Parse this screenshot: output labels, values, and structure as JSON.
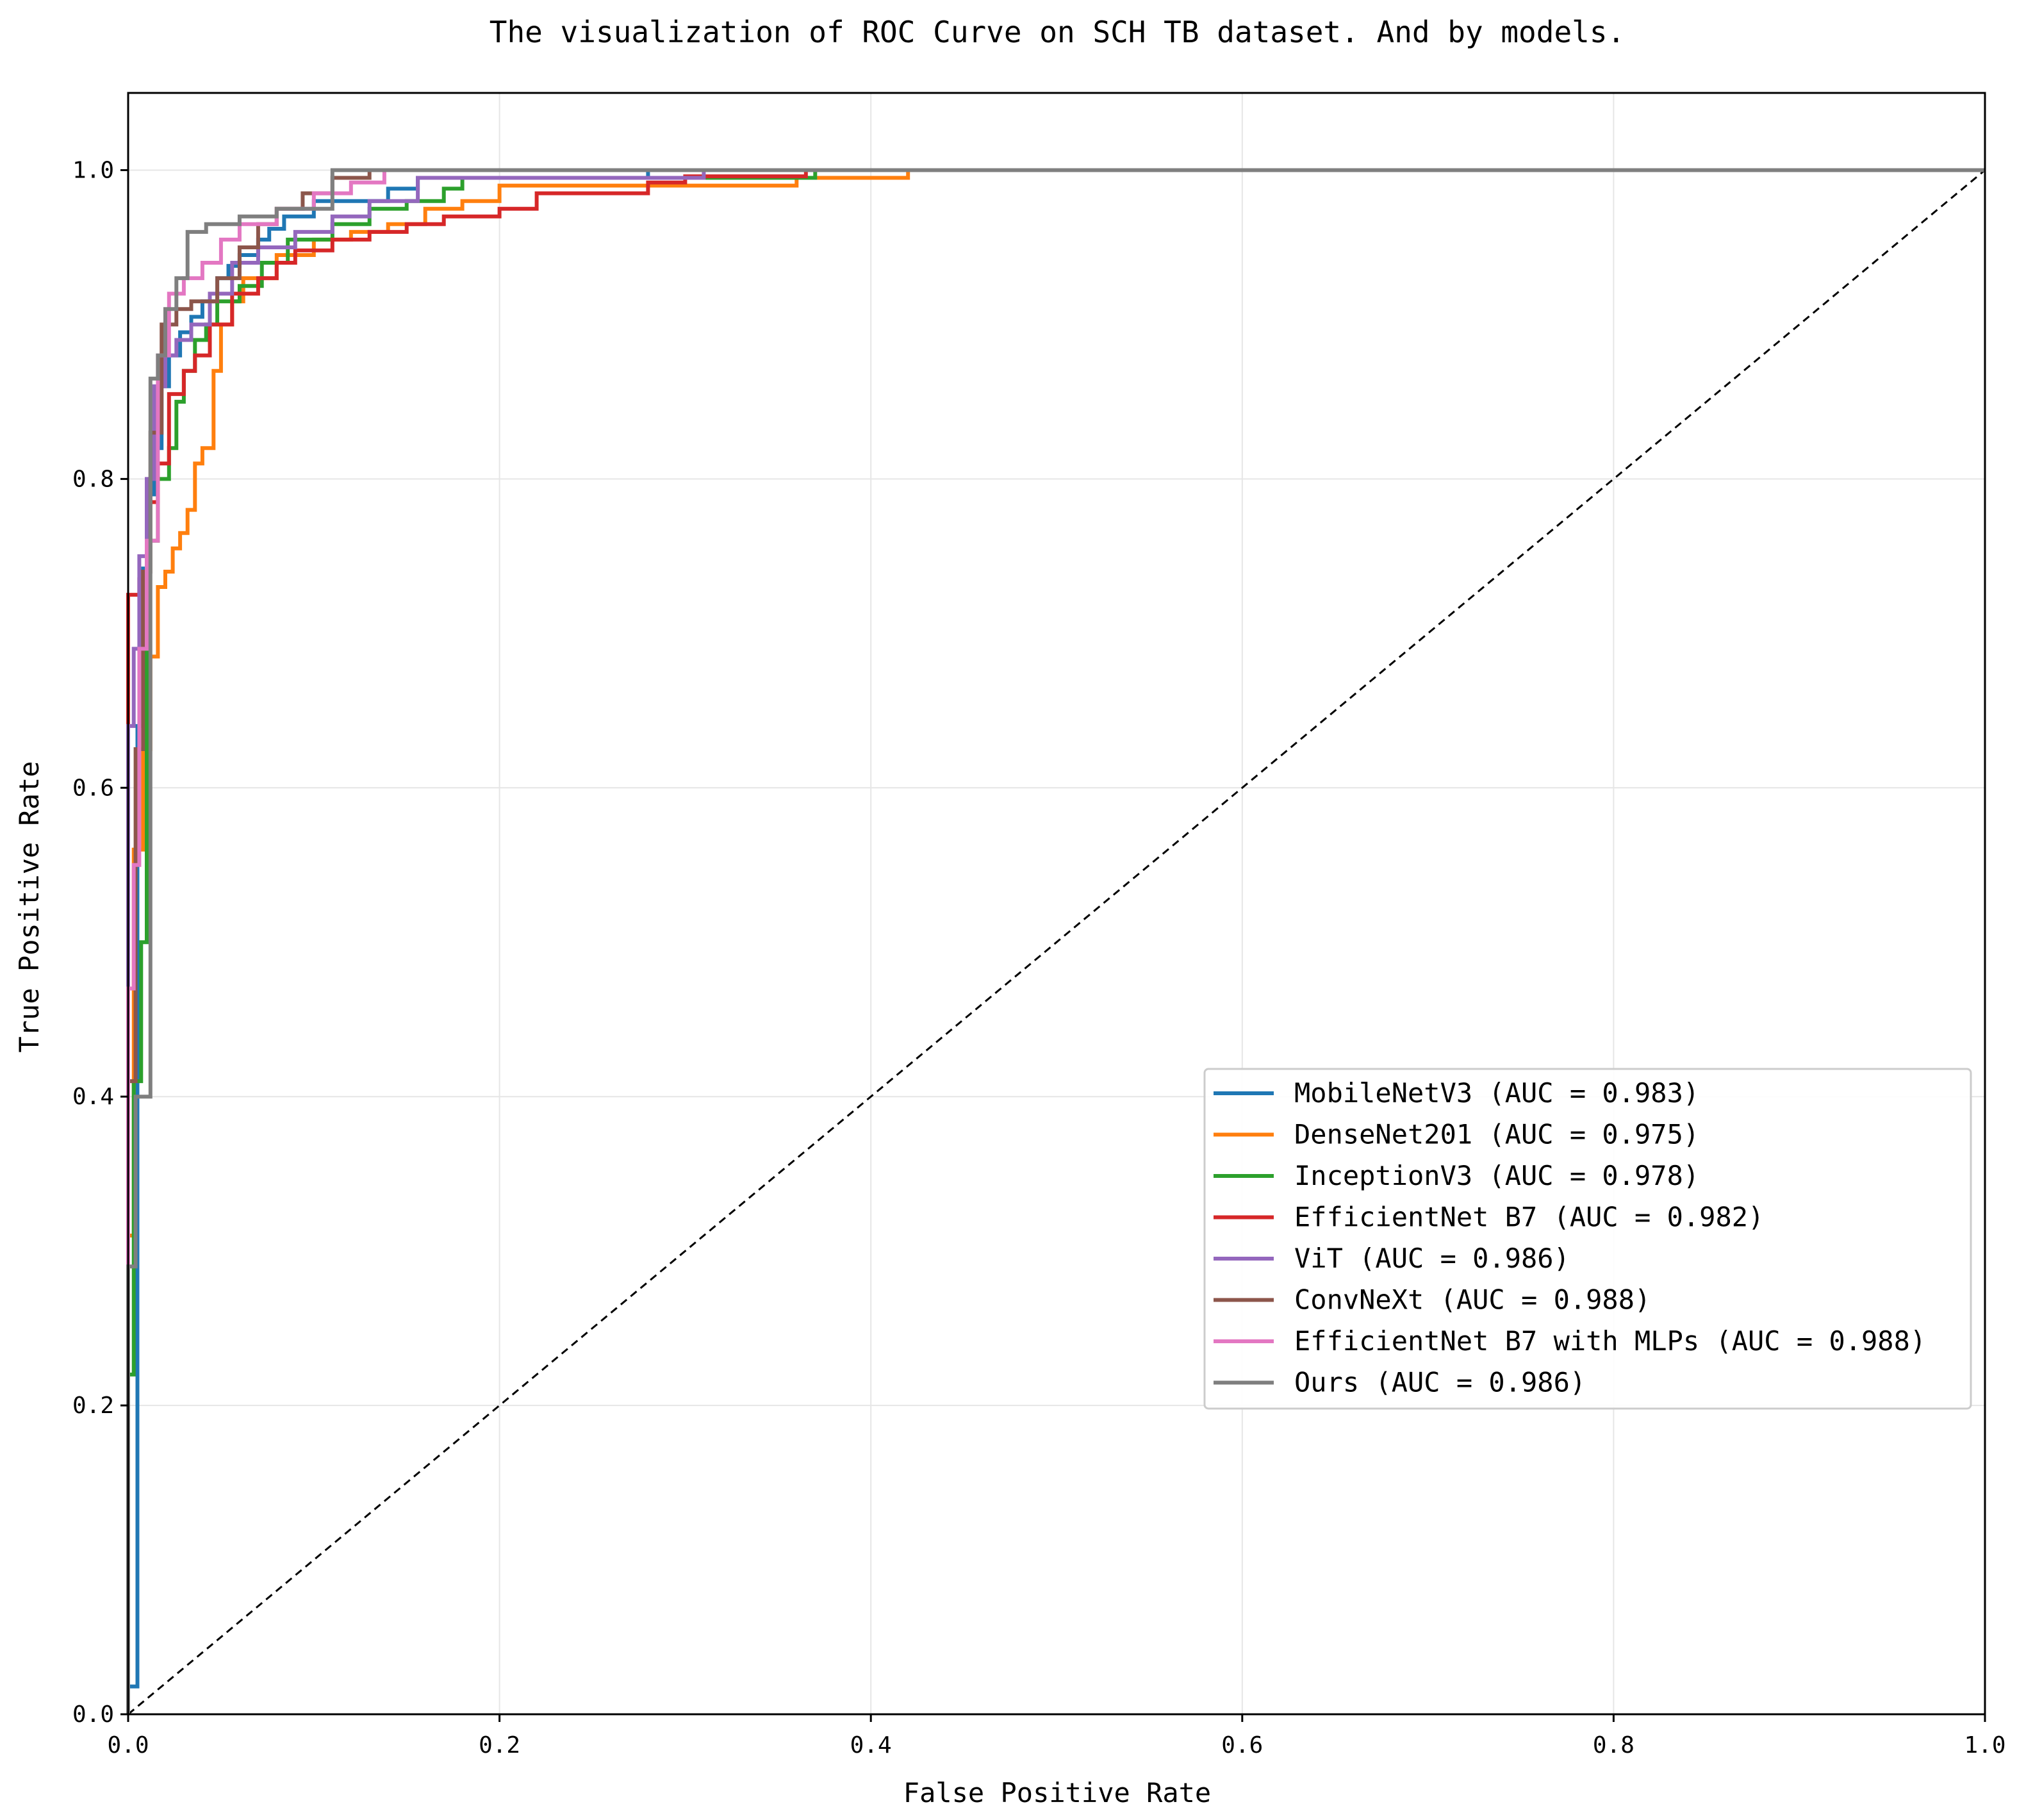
{
  "chart_data": {
    "type": "line",
    "title": "The visualization of ROC Curve on SCH TB dataset. And by models.",
    "xlabel": "False Positive Rate",
    "ylabel": "True Positive Rate",
    "xlim": [
      0.0,
      1.0
    ],
    "ylim": [
      0.0,
      1.05
    ],
    "xticks": [
      0.0,
      0.2,
      0.4,
      0.6,
      0.8,
      1.0
    ],
    "yticks": [
      0.0,
      0.2,
      0.4,
      0.6,
      0.8,
      1.0
    ],
    "xtick_labels": [
      "0.0",
      "0.2",
      "0.4",
      "0.6",
      "0.8",
      "1.0"
    ],
    "ytick_labels": [
      "0.0",
      "0.2",
      "0.4",
      "0.6",
      "0.8",
      "1.0"
    ],
    "grid": true,
    "legend_position": "center-right",
    "diagonal": {
      "x": [
        0,
        1
      ],
      "y": [
        0,
        1
      ],
      "color": "#000000",
      "style": "dashed"
    },
    "series": [
      {
        "name": "MobileNetV3 (AUC = 0.983)",
        "color": "#1f77b4",
        "x": [
          0,
          0,
          0.005,
          0.005,
          0.008,
          0.008,
          0.01,
          0.01,
          0.014,
          0.014,
          0.018,
          0.018,
          0.022,
          0.022,
          0.028,
          0.028,
          0.034,
          0.034,
          0.04,
          0.04,
          0.048,
          0.048,
          0.054,
          0.054,
          0.06,
          0.06,
          0.07,
          0.07,
          0.076,
          0.076,
          0.084,
          0.084,
          0.1,
          0.1,
          0.14,
          0.14,
          0.156,
          0.156,
          0.28,
          0.28,
          1.0
        ],
        "y": [
          0,
          0.018,
          0.018,
          0.64,
          0.64,
          0.742,
          0.742,
          0.79,
          0.79,
          0.82,
          0.82,
          0.86,
          0.86,
          0.88,
          0.88,
          0.895,
          0.895,
          0.905,
          0.905,
          0.915,
          0.915,
          0.93,
          0.93,
          0.938,
          0.938,
          0.945,
          0.945,
          0.955,
          0.955,
          0.962,
          0.962,
          0.97,
          0.97,
          0.98,
          0.98,
          0.988,
          0.988,
          0.995,
          0.995,
          1.0,
          1.0
        ]
      },
      {
        "name": "DenseNet201 (AUC = 0.975)",
        "color": "#ff7f0e",
        "x": [
          0,
          0,
          0.003,
          0.003,
          0.008,
          0.008,
          0.012,
          0.012,
          0.016,
          0.016,
          0.02,
          0.02,
          0.024,
          0.024,
          0.028,
          0.028,
          0.032,
          0.032,
          0.036,
          0.036,
          0.04,
          0.04,
          0.046,
          0.046,
          0.05,
          0.05,
          0.056,
          0.056,
          0.062,
          0.062,
          0.08,
          0.08,
          0.1,
          0.1,
          0.12,
          0.12,
          0.14,
          0.14,
          0.16,
          0.16,
          0.18,
          0.18,
          0.2,
          0.2,
          0.36,
          0.36,
          0.42,
          0.42,
          1.0
        ],
        "y": [
          0,
          0.31,
          0.31,
          0.56,
          0.56,
          0.625,
          0.625,
          0.685,
          0.685,
          0.73,
          0.73,
          0.74,
          0.74,
          0.755,
          0.755,
          0.765,
          0.765,
          0.78,
          0.78,
          0.81,
          0.81,
          0.82,
          0.82,
          0.87,
          0.87,
          0.9,
          0.9,
          0.915,
          0.915,
          0.93,
          0.93,
          0.945,
          0.945,
          0.955,
          0.955,
          0.96,
          0.96,
          0.965,
          0.965,
          0.975,
          0.975,
          0.98,
          0.98,
          0.99,
          0.99,
          0.995,
          0.995,
          1.0,
          1.0
        ]
      },
      {
        "name": "InceptionV3 (AUC = 0.978)",
        "color": "#2ca02c",
        "x": [
          0,
          0,
          0.003,
          0.003,
          0.007,
          0.007,
          0.01,
          0.01,
          0.016,
          0.016,
          0.022,
          0.022,
          0.026,
          0.026,
          0.03,
          0.03,
          0.036,
          0.036,
          0.042,
          0.042,
          0.048,
          0.048,
          0.06,
          0.06,
          0.072,
          0.072,
          0.086,
          0.086,
          0.11,
          0.11,
          0.13,
          0.13,
          0.15,
          0.15,
          0.17,
          0.17,
          0.18,
          0.18,
          0.37,
          0.37,
          0.565,
          0.565,
          1.0
        ],
        "y": [
          0,
          0.22,
          0.22,
          0.41,
          0.41,
          0.5,
          0.5,
          0.76,
          0.76,
          0.8,
          0.8,
          0.82,
          0.82,
          0.85,
          0.85,
          0.87,
          0.87,
          0.89,
          0.89,
          0.9,
          0.9,
          0.915,
          0.915,
          0.925,
          0.925,
          0.94,
          0.94,
          0.955,
          0.955,
          0.965,
          0.965,
          0.975,
          0.975,
          0.98,
          0.98,
          0.988,
          0.988,
          0.995,
          0.995,
          1.0,
          1.0,
          1.0,
          1.0
        ]
      },
      {
        "name": "EfficientNet B7 (AUC = 0.982)",
        "color": "#d62728",
        "x": [
          0,
          0,
          0.006,
          0.006,
          0.01,
          0.01,
          0.016,
          0.016,
          0.022,
          0.022,
          0.03,
          0.03,
          0.036,
          0.036,
          0.044,
          0.044,
          0.056,
          0.056,
          0.07,
          0.07,
          0.08,
          0.08,
          0.09,
          0.09,
          0.11,
          0.11,
          0.13,
          0.13,
          0.15,
          0.15,
          0.17,
          0.17,
          0.2,
          0.2,
          0.22,
          0.22,
          0.28,
          0.28,
          0.3,
          0.3,
          0.365,
          0.365,
          1.0
        ],
        "y": [
          0,
          0.725,
          0.725,
          0.735,
          0.735,
          0.785,
          0.785,
          0.81,
          0.81,
          0.855,
          0.855,
          0.87,
          0.87,
          0.88,
          0.88,
          0.9,
          0.9,
          0.92,
          0.92,
          0.93,
          0.93,
          0.94,
          0.94,
          0.948,
          0.948,
          0.955,
          0.955,
          0.96,
          0.96,
          0.965,
          0.965,
          0.97,
          0.97,
          0.975,
          0.975,
          0.985,
          0.985,
          0.992,
          0.992,
          0.996,
          0.996,
          1.0,
          1.0
        ]
      },
      {
        "name": "ViT (AUC = 0.986)",
        "color": "#9467bd",
        "x": [
          0,
          0,
          0.003,
          0.003,
          0.006,
          0.006,
          0.01,
          0.01,
          0.014,
          0.014,
          0.02,
          0.02,
          0.026,
          0.026,
          0.034,
          0.034,
          0.044,
          0.044,
          0.056,
          0.056,
          0.07,
          0.07,
          0.09,
          0.09,
          0.11,
          0.11,
          0.13,
          0.13,
          0.156,
          0.156,
          0.31,
          0.31,
          1.0
        ],
        "y": [
          0,
          0.64,
          0.64,
          0.69,
          0.69,
          0.75,
          0.75,
          0.8,
          0.8,
          0.86,
          0.86,
          0.88,
          0.88,
          0.89,
          0.89,
          0.9,
          0.9,
          0.92,
          0.92,
          0.94,
          0.94,
          0.95,
          0.95,
          0.96,
          0.96,
          0.97,
          0.97,
          0.98,
          0.98,
          0.995,
          0.995,
          1.0,
          1.0
        ]
      },
      {
        "name": "ConvNeXt (AUC = 0.988)",
        "color": "#8c564b",
        "x": [
          0,
          0,
          0.004,
          0.004,
          0.008,
          0.008,
          0.012,
          0.012,
          0.018,
          0.018,
          0.026,
          0.026,
          0.034,
          0.034,
          0.048,
          0.048,
          0.06,
          0.06,
          0.07,
          0.07,
          0.08,
          0.08,
          0.094,
          0.094,
          0.11,
          0.11,
          0.13,
          0.13,
          1.0
        ],
        "y": [
          0,
          0.41,
          0.41,
          0.625,
          0.625,
          0.74,
          0.74,
          0.83,
          0.83,
          0.9,
          0.9,
          0.91,
          0.91,
          0.915,
          0.915,
          0.93,
          0.93,
          0.95,
          0.95,
          0.965,
          0.965,
          0.975,
          0.975,
          0.985,
          0.985,
          0.995,
          0.995,
          1.0,
          1.0
        ]
      },
      {
        "name": "EfficientNet B7 with MLPs (AUC = 0.988)",
        "color": "#e377c2",
        "x": [
          0,
          0,
          0.003,
          0.003,
          0.006,
          0.006,
          0.01,
          0.01,
          0.016,
          0.016,
          0.022,
          0.022,
          0.03,
          0.03,
          0.04,
          0.04,
          0.05,
          0.05,
          0.06,
          0.06,
          0.08,
          0.08,
          0.1,
          0.1,
          0.12,
          0.12,
          0.138,
          0.138,
          1.0
        ],
        "y": [
          0,
          0.47,
          0.47,
          0.55,
          0.55,
          0.69,
          0.69,
          0.76,
          0.76,
          0.88,
          0.88,
          0.92,
          0.92,
          0.93,
          0.93,
          0.94,
          0.94,
          0.955,
          0.955,
          0.965,
          0.965,
          0.975,
          0.975,
          0.985,
          0.985,
          0.992,
          0.992,
          1.0,
          1.0
        ]
      },
      {
        "name": "Ours (AUC = 0.986)",
        "color": "#7f7f7f",
        "x": [
          0,
          0,
          0.004,
          0.004,
          0.012,
          0.012,
          0.016,
          0.016,
          0.02,
          0.02,
          0.026,
          0.026,
          0.032,
          0.032,
          0.042,
          0.042,
          0.06,
          0.06,
          0.08,
          0.08,
          0.11,
          0.11,
          1.0
        ],
        "y": [
          0,
          0.29,
          0.29,
          0.4,
          0.4,
          0.865,
          0.865,
          0.88,
          0.88,
          0.91,
          0.91,
          0.93,
          0.93,
          0.96,
          0.96,
          0.965,
          0.965,
          0.97,
          0.97,
          0.975,
          0.975,
          1.0,
          1.0
        ]
      }
    ]
  }
}
